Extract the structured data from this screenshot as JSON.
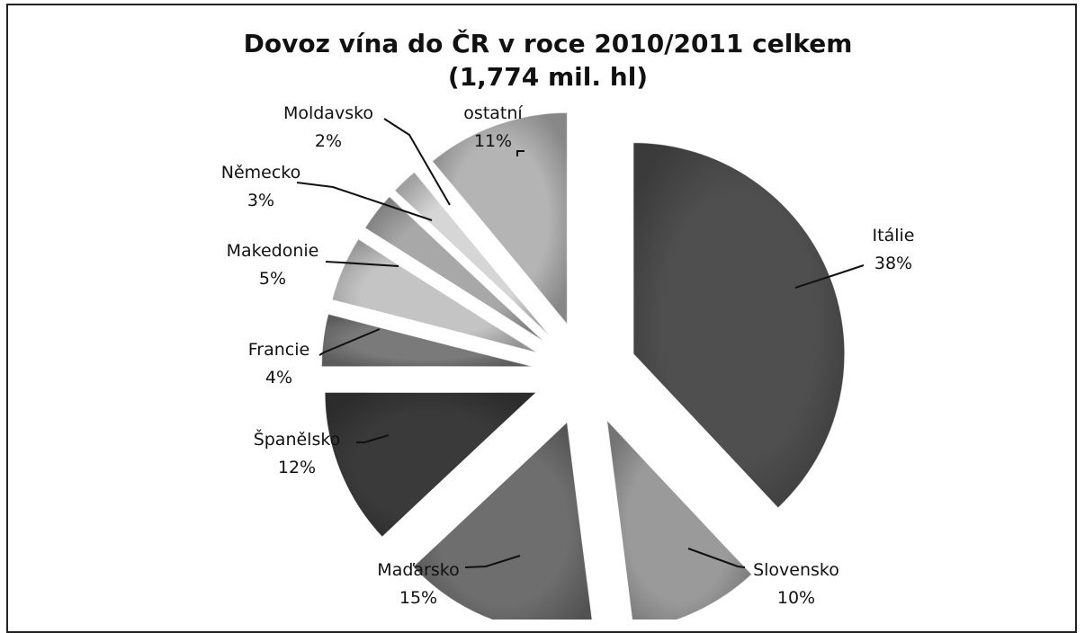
{
  "chart_data": {
    "type": "pie",
    "title": "Dovoz vína do ČR v roce 2010/2011 celkem",
    "subtitle": "(1,774 mil. hl)",
    "slices": [
      {
        "label": "Itálie",
        "value": 38,
        "pct_label": "38%",
        "color": "#4f4f4f"
      },
      {
        "label": "Slovensko",
        "value": 10,
        "pct_label": "10%",
        "color": "#9a9a9a"
      },
      {
        "label": "Maďarsko",
        "value": 15,
        "pct_label": "15%",
        "color": "#6e6e6e"
      },
      {
        "label": "Španělsko",
        "value": 12,
        "pct_label": "12%",
        "color": "#3a3a3a"
      },
      {
        "label": "Francie",
        "value": 4,
        "pct_label": "4%",
        "color": "#7a7a7a"
      },
      {
        "label": "Makedonie",
        "value": 5,
        "pct_label": "5%",
        "color": "#c4c4c4"
      },
      {
        "label": "Německo",
        "value": 3,
        "pct_label": "3%",
        "color": "#a8a8a8"
      },
      {
        "label": "Moldavsko",
        "value": 2,
        "pct_label": "2%",
        "color": "#d6d6d6"
      },
      {
        "label": "ostatní",
        "value": 11,
        "pct_label": "11%",
        "color": "#b4b4b4"
      }
    ]
  }
}
